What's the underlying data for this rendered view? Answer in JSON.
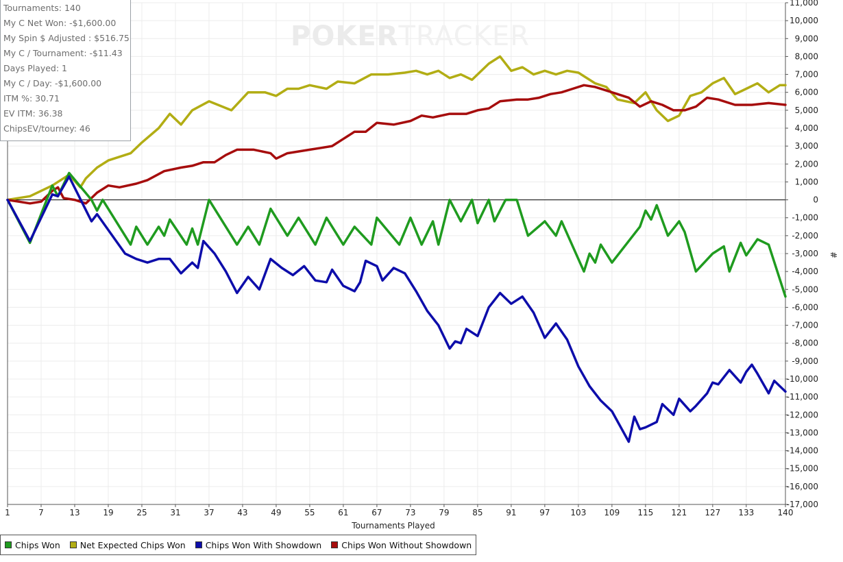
{
  "watermark": {
    "part1": "POKER",
    "part2": "TRACKER"
  },
  "stats": [
    "Tournaments: 140",
    "My C Net Won: -$1,600.00",
    "My Spin $ Adjusted : $516.75",
    "My C / Tournament: -$11.43",
    "Days Played: 1",
    "My C / Day: -$1,600.00",
    "ITM %: 30.71",
    "EV ITM: 36.38",
    "ChipsEV/tourney: 46"
  ],
  "chart_data": {
    "type": "line",
    "xlabel": "Tournaments Played",
    "ylabel": "#",
    "xlim": [
      1,
      140
    ],
    "ylim": [
      -17000,
      11000
    ],
    "x_ticks": [
      1,
      7,
      13,
      19,
      25,
      31,
      37,
      43,
      49,
      55,
      61,
      67,
      73,
      79,
      85,
      91,
      97,
      103,
      109,
      115,
      121,
      127,
      133,
      140
    ],
    "y_ticks": [
      11000,
      10000,
      9000,
      8000,
      7000,
      6000,
      5000,
      4000,
      3000,
      2000,
      1000,
      0,
      -1000,
      -2000,
      -3000,
      -4000,
      -5000,
      -6000,
      -7000,
      -8000,
      -9000,
      -10000,
      -11000,
      -12000,
      -13000,
      -14000,
      -15000,
      -16000,
      -17000
    ],
    "y_tick_labels": [
      "11,000",
      "10,000",
      "9,000",
      "8,000",
      "7,000",
      "6,000",
      "5,000",
      "4,000",
      "3,000",
      "2,000",
      "1,000",
      "0",
      "-1,000",
      "-2,000",
      "-3,000",
      "-4,000",
      "-5,000",
      "-6,000",
      "-7,000",
      "-8,000",
      "-9,000",
      "-10,000",
      "-11,000",
      "-12,000",
      "-13,000",
      "-14,000",
      "-15,000",
      "-16,000",
      "-17,000"
    ],
    "grid": true,
    "legend_position": "bottom-left",
    "series": [
      {
        "name": "Chips Won",
        "color": "#1f9b1f",
        "points": [
          [
            1,
            0
          ],
          [
            5,
            -2400
          ],
          [
            9,
            800
          ],
          [
            10,
            200
          ],
          [
            12,
            1500
          ],
          [
            16,
            0
          ],
          [
            17,
            -600
          ],
          [
            18,
            0
          ],
          [
            23,
            -2500
          ],
          [
            24,
            -1500
          ],
          [
            26,
            -2500
          ],
          [
            28,
            -1500
          ],
          [
            29,
            -2000
          ],
          [
            30,
            -1100
          ],
          [
            33,
            -2500
          ],
          [
            34,
            -1600
          ],
          [
            35,
            -2500
          ],
          [
            37,
            0
          ],
          [
            42,
            -2500
          ],
          [
            44,
            -1500
          ],
          [
            46,
            -2500
          ],
          [
            48,
            -500
          ],
          [
            51,
            -2000
          ],
          [
            53,
            -1000
          ],
          [
            56,
            -2500
          ],
          [
            58,
            -1000
          ],
          [
            61,
            -2500
          ],
          [
            63,
            -1500
          ],
          [
            66,
            -2500
          ],
          [
            67,
            -1000
          ],
          [
            71,
            -2500
          ],
          [
            73,
            -1000
          ],
          [
            75,
            -2500
          ],
          [
            77,
            -1200
          ],
          [
            78,
            -2500
          ],
          [
            80,
            0
          ],
          [
            82,
            -1200
          ],
          [
            84,
            0
          ],
          [
            85,
            -1300
          ],
          [
            87,
            0
          ],
          [
            88,
            -1200
          ],
          [
            90,
            0
          ],
          [
            92,
            0
          ],
          [
            94,
            -2000
          ],
          [
            97,
            -1200
          ],
          [
            99,
            -2000
          ],
          [
            100,
            -1200
          ],
          [
            104,
            -4000
          ],
          [
            105,
            -3000
          ],
          [
            106,
            -3500
          ],
          [
            107,
            -2500
          ],
          [
            109,
            -3500
          ],
          [
            114,
            -1500
          ],
          [
            115,
            -600
          ],
          [
            116,
            -1100
          ],
          [
            117,
            -300
          ],
          [
            119,
            -2000
          ],
          [
            121,
            -1200
          ],
          [
            122,
            -1800
          ],
          [
            124,
            -4000
          ],
          [
            127,
            -3000
          ],
          [
            129,
            -2600
          ],
          [
            130,
            -4000
          ],
          [
            132,
            -2400
          ],
          [
            133,
            -3100
          ],
          [
            135,
            -2200
          ],
          [
            137,
            -2500
          ],
          [
            140,
            -5400
          ]
        ]
      },
      {
        "name": "Net Expected Chips Won",
        "color": "#b2ad14",
        "points": [
          [
            1,
            0
          ],
          [
            5,
            200
          ],
          [
            9,
            800
          ],
          [
            12,
            1400
          ],
          [
            14,
            700
          ],
          [
            15,
            1200
          ],
          [
            17,
            1800
          ],
          [
            19,
            2200
          ],
          [
            23,
            2600
          ],
          [
            25,
            3200
          ],
          [
            28,
            4000
          ],
          [
            30,
            4800
          ],
          [
            32,
            4200
          ],
          [
            34,
            5000
          ],
          [
            37,
            5500
          ],
          [
            41,
            5000
          ],
          [
            44,
            6000
          ],
          [
            47,
            6000
          ],
          [
            49,
            5800
          ],
          [
            51,
            6200
          ],
          [
            53,
            6200
          ],
          [
            55,
            6400
          ],
          [
            58,
            6200
          ],
          [
            60,
            6600
          ],
          [
            63,
            6500
          ],
          [
            66,
            7000
          ],
          [
            69,
            7000
          ],
          [
            72,
            7100
          ],
          [
            74,
            7200
          ],
          [
            76,
            7000
          ],
          [
            78,
            7200
          ],
          [
            80,
            6800
          ],
          [
            82,
            7000
          ],
          [
            84,
            6700
          ],
          [
            87,
            7600
          ],
          [
            89,
            8000
          ],
          [
            91,
            7200
          ],
          [
            93,
            7400
          ],
          [
            95,
            7000
          ],
          [
            97,
            7200
          ],
          [
            99,
            7000
          ],
          [
            101,
            7200
          ],
          [
            103,
            7100
          ],
          [
            106,
            6500
          ],
          [
            108,
            6300
          ],
          [
            110,
            5600
          ],
          [
            113,
            5400
          ],
          [
            115,
            6000
          ],
          [
            117,
            5000
          ],
          [
            119,
            4400
          ],
          [
            121,
            4700
          ],
          [
            123,
            5800
          ],
          [
            125,
            6000
          ],
          [
            127,
            6500
          ],
          [
            129,
            6800
          ],
          [
            131,
            5900
          ],
          [
            133,
            6200
          ],
          [
            135,
            6500
          ],
          [
            137,
            6000
          ],
          [
            139,
            6400
          ],
          [
            140,
            6400
          ]
        ]
      },
      {
        "name": "Chips Won With Showdown",
        "color": "#0d0daa",
        "points": [
          [
            1,
            0
          ],
          [
            5,
            -2300
          ],
          [
            9,
            300
          ],
          [
            10,
            200
          ],
          [
            12,
            1300
          ],
          [
            16,
            -1200
          ],
          [
            17,
            -800
          ],
          [
            22,
            -3000
          ],
          [
            24,
            -3300
          ],
          [
            26,
            -3500
          ],
          [
            28,
            -3300
          ],
          [
            30,
            -3300
          ],
          [
            32,
            -4100
          ],
          [
            34,
            -3500
          ],
          [
            35,
            -3800
          ],
          [
            36,
            -2300
          ],
          [
            38,
            -3000
          ],
          [
            40,
            -4000
          ],
          [
            42,
            -5200
          ],
          [
            44,
            -4300
          ],
          [
            46,
            -5000
          ],
          [
            48,
            -3300
          ],
          [
            50,
            -3800
          ],
          [
            52,
            -4200
          ],
          [
            54,
            -3700
          ],
          [
            56,
            -4500
          ],
          [
            58,
            -4600
          ],
          [
            59,
            -3900
          ],
          [
            61,
            -4800
          ],
          [
            63,
            -5100
          ],
          [
            64,
            -4600
          ],
          [
            65,
            -3400
          ],
          [
            67,
            -3700
          ],
          [
            68,
            -4500
          ],
          [
            70,
            -3800
          ],
          [
            72,
            -4100
          ],
          [
            74,
            -5100
          ],
          [
            76,
            -6200
          ],
          [
            78,
            -7000
          ],
          [
            80,
            -8300
          ],
          [
            81,
            -7900
          ],
          [
            82,
            -8000
          ],
          [
            83,
            -7200
          ],
          [
            85,
            -7600
          ],
          [
            87,
            -6000
          ],
          [
            89,
            -5200
          ],
          [
            91,
            -5800
          ],
          [
            93,
            -5400
          ],
          [
            95,
            -6300
          ],
          [
            97,
            -7700
          ],
          [
            99,
            -6900
          ],
          [
            101,
            -7800
          ],
          [
            103,
            -9300
          ],
          [
            105,
            -10400
          ],
          [
            107,
            -11200
          ],
          [
            109,
            -11800
          ],
          [
            112,
            -13500
          ],
          [
            113,
            -12100
          ],
          [
            114,
            -12800
          ],
          [
            115,
            -12700
          ],
          [
            117,
            -12400
          ],
          [
            118,
            -11400
          ],
          [
            120,
            -12000
          ],
          [
            121,
            -11100
          ],
          [
            123,
            -11800
          ],
          [
            124,
            -11500
          ],
          [
            126,
            -10800
          ],
          [
            127,
            -10200
          ],
          [
            128,
            -10300
          ],
          [
            130,
            -9500
          ],
          [
            132,
            -10200
          ],
          [
            133,
            -9600
          ],
          [
            134,
            -9200
          ],
          [
            135,
            -9700
          ],
          [
            137,
            -10800
          ],
          [
            138,
            -10100
          ],
          [
            140,
            -10700
          ]
        ]
      },
      {
        "name": "Chips Won Without Showdown",
        "color": "#a60d0d",
        "points": [
          [
            1,
            0
          ],
          [
            3,
            -100
          ],
          [
            5,
            -200
          ],
          [
            7,
            -100
          ],
          [
            9,
            500
          ],
          [
            10,
            700
          ],
          [
            11,
            100
          ],
          [
            13,
            0
          ],
          [
            15,
            -200
          ],
          [
            17,
            400
          ],
          [
            19,
            800
          ],
          [
            21,
            700
          ],
          [
            24,
            900
          ],
          [
            26,
            1100
          ],
          [
            29,
            1600
          ],
          [
            32,
            1800
          ],
          [
            34,
            1900
          ],
          [
            36,
            2100
          ],
          [
            38,
            2100
          ],
          [
            40,
            2500
          ],
          [
            42,
            2800
          ],
          [
            45,
            2800
          ],
          [
            48,
            2600
          ],
          [
            49,
            2300
          ],
          [
            51,
            2600
          ],
          [
            53,
            2700
          ],
          [
            55,
            2800
          ],
          [
            57,
            2900
          ],
          [
            59,
            3000
          ],
          [
            61,
            3400
          ],
          [
            63,
            3800
          ],
          [
            65,
            3800
          ],
          [
            67,
            4300
          ],
          [
            70,
            4200
          ],
          [
            73,
            4400
          ],
          [
            75,
            4700
          ],
          [
            77,
            4600
          ],
          [
            80,
            4800
          ],
          [
            83,
            4800
          ],
          [
            85,
            5000
          ],
          [
            87,
            5100
          ],
          [
            89,
            5500
          ],
          [
            92,
            5600
          ],
          [
            94,
            5600
          ],
          [
            96,
            5700
          ],
          [
            98,
            5900
          ],
          [
            100,
            6000
          ],
          [
            102,
            6200
          ],
          [
            104,
            6400
          ],
          [
            106,
            6300
          ],
          [
            108,
            6100
          ],
          [
            110,
            5900
          ],
          [
            112,
            5700
          ],
          [
            114,
            5200
          ],
          [
            116,
            5500
          ],
          [
            118,
            5300
          ],
          [
            120,
            5000
          ],
          [
            122,
            5000
          ],
          [
            124,
            5200
          ],
          [
            126,
            5700
          ],
          [
            128,
            5600
          ],
          [
            131,
            5300
          ],
          [
            134,
            5300
          ],
          [
            137,
            5400
          ],
          [
            140,
            5300
          ]
        ]
      }
    ]
  }
}
